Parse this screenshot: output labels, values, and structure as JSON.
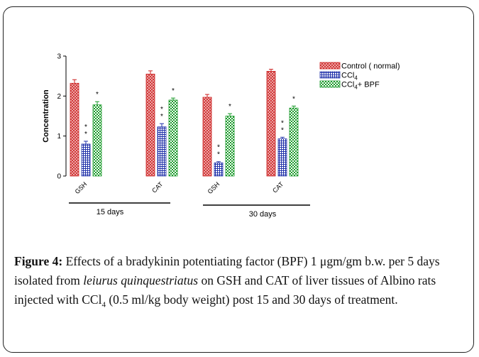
{
  "chart_data": {
    "type": "bar",
    "ylabel": "Concentration",
    "ylim": [
      0,
      3
    ],
    "yticks": [
      0,
      1,
      2,
      3
    ],
    "categories": [
      "GSH",
      "CAT",
      "GSH",
      "CAT"
    ],
    "groups": [
      {
        "label": "15 days",
        "categories": [
          "GSH",
          "CAT"
        ]
      },
      {
        "label": "30 days",
        "categories": [
          "GSH",
          "CAT"
        ]
      }
    ],
    "series": [
      {
        "name": "Control ( normal)",
        "values": [
          2.32,
          2.55,
          1.97,
          2.62
        ],
        "errors": [
          0.09,
          0.08,
          0.07,
          0.05
        ],
        "stars": [
          0,
          0,
          0,
          0
        ],
        "color": "#cc2222",
        "pattern": "crosshatch"
      },
      {
        "name_main": "CCl",
        "name_sub": "4",
        "values": [
          0.8,
          1.23,
          0.33,
          0.93
        ],
        "errors": [
          0.07,
          0.08,
          0.03,
          0.04
        ],
        "stars": [
          2,
          2,
          2,
          2
        ],
        "color": "#2233aa",
        "pattern": "grid"
      },
      {
        "name_main": "CCl",
        "name_sub": "4",
        "name_tail": "+ BPF",
        "values": [
          1.78,
          1.9,
          1.5,
          1.7
        ],
        "errors": [
          0.08,
          0.05,
          0.06,
          0.05
        ],
        "stars": [
          1,
          1,
          1,
          1
        ],
        "color": "#1a9a2a",
        "pattern": "checker"
      }
    ],
    "legend_position": "top-right",
    "grid": false
  },
  "caption": {
    "label": "Figure 4:",
    "text1": " Effects of a bradykinin potentiating factor (BPF) 1 μgm/gm b.w. per 5 days isolated from ",
    "species": "leiurus quinquestriatus",
    "text2": " on GSH and CAT of liver tissues of Albino rats injected with CCl",
    "sub": "4",
    "text3": " (0.5 ml/kg body weight) post 15 and 30 days of treatment."
  }
}
